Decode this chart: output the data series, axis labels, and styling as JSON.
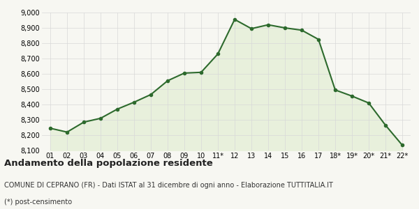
{
  "x_labels": [
    "01",
    "02",
    "03",
    "04",
    "05",
    "06",
    "07",
    "08",
    "09",
    "10",
    "11*",
    "12",
    "13",
    "14",
    "15",
    "16",
    "17",
    "18*",
    "19*",
    "20*",
    "21*",
    "22*"
  ],
  "y_values": [
    8245,
    8220,
    8285,
    8310,
    8370,
    8415,
    8465,
    8555,
    8605,
    8610,
    8730,
    8955,
    8895,
    8920,
    8900,
    8885,
    8825,
    8495,
    8455,
    8410,
    8265,
    8135
  ],
  "line_color": "#2d6a2d",
  "fill_color": "#e8f0dc",
  "marker": "o",
  "marker_size": 3,
  "linewidth": 1.5,
  "ylim": [
    8100,
    9000
  ],
  "yticks": [
    8100,
    8200,
    8300,
    8400,
    8500,
    8600,
    8700,
    8800,
    8900,
    9000
  ],
  "title": "Andamento della popolazione residente",
  "subtitle": "COMUNE DI CEPRANO (FR) - Dati ISTAT al 31 dicembre di ogni anno - Elaborazione TUTTITALIA.IT",
  "footnote": "(*) post-censimento",
  "bg_color": "#f7f7f2",
  "grid_color": "#d8d8d8",
  "title_fontsize": 9.5,
  "subtitle_fontsize": 7,
  "footnote_fontsize": 7,
  "tick_fontsize": 7
}
